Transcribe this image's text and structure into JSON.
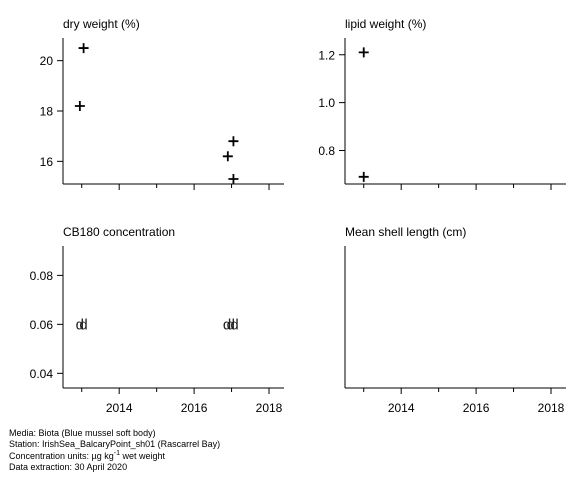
{
  "chart_data": [
    {
      "type": "scatter",
      "title": "dry weight (%)",
      "xlabel": "",
      "ylabel": "",
      "xlim": [
        2012.5,
        2018.4
      ],
      "ylim": [
        15.1,
        20.9
      ],
      "x_ticks": [
        2014,
        2016,
        2018
      ],
      "x_tick_labels_shown": false,
      "y_ticks": [
        16,
        18,
        20
      ],
      "y_tick_labels": [
        "16",
        "18",
        "20"
      ],
      "marker": "+",
      "points": [
        {
          "x": 2013.05,
          "y": 20.5
        },
        {
          "x": 2012.95,
          "y": 18.2
        },
        {
          "x": 2017.05,
          "y": 16.8
        },
        {
          "x": 2016.9,
          "y": 16.2
        },
        {
          "x": 2017.05,
          "y": 15.3
        }
      ]
    },
    {
      "type": "scatter",
      "title": "lipid weight (%)",
      "xlabel": "",
      "ylabel": "",
      "xlim": [
        2012.5,
        2018.4
      ],
      "ylim": [
        0.66,
        1.27
      ],
      "x_ticks": [
        2014,
        2016,
        2018
      ],
      "x_tick_labels_shown": false,
      "y_ticks": [
        0.8,
        1.0,
        1.2
      ],
      "y_tick_labels": [
        "0.8",
        "1.0",
        "1.2"
      ],
      "marker": "+",
      "points": [
        {
          "x": 2013.0,
          "y": 1.21
        },
        {
          "x": 2013.0,
          "y": 0.69
        }
      ]
    },
    {
      "type": "scatter",
      "title": "CB180 concentration",
      "xlabel": "",
      "ylabel": "",
      "xlim": [
        2012.5,
        2018.4
      ],
      "ylim": [
        0.034,
        0.092
      ],
      "x_ticks": [
        2014,
        2016,
        2018
      ],
      "x_tick_labels_shown": true,
      "x_tick_labels": [
        "2014",
        "2016",
        "2018"
      ],
      "y_ticks": [
        0.04,
        0.06,
        0.08
      ],
      "y_tick_labels": [
        "0.04",
        "0.06",
        "0.08"
      ],
      "marker": "text",
      "points": [
        {
          "x": 2012.95,
          "y": 0.06,
          "label": "d"
        },
        {
          "x": 2013.05,
          "y": 0.06,
          "label": "d"
        },
        {
          "x": 2016.88,
          "y": 0.06,
          "label": "d"
        },
        {
          "x": 2016.98,
          "y": 0.06,
          "label": "d"
        },
        {
          "x": 2017.08,
          "y": 0.06,
          "label": "d"
        }
      ]
    },
    {
      "type": "scatter",
      "title": "Mean shell length (cm)",
      "xlabel": "",
      "ylabel": "",
      "xlim": [
        2012.5,
        2018.4
      ],
      "ylim": [
        0,
        1
      ],
      "x_ticks": [
        2014,
        2016,
        2018
      ],
      "x_tick_labels_shown": true,
      "x_tick_labels": [
        "2014",
        "2016",
        "2018"
      ],
      "y_ticks": [],
      "y_tick_labels": [],
      "marker": "+",
      "points": []
    }
  ],
  "footer": {
    "media": "Media: Biota (Blue mussel soft body)",
    "station": "Station: IrishSea_BalcaryPoint_sh01 (Rascarrel Bay)",
    "units_prefix": "Concentration units: ",
    "units_mu": "µg kg",
    "units_exp": "-1",
    "units_suffix": " wet weight",
    "extraction": "Data extraction: 30 April 2020"
  }
}
